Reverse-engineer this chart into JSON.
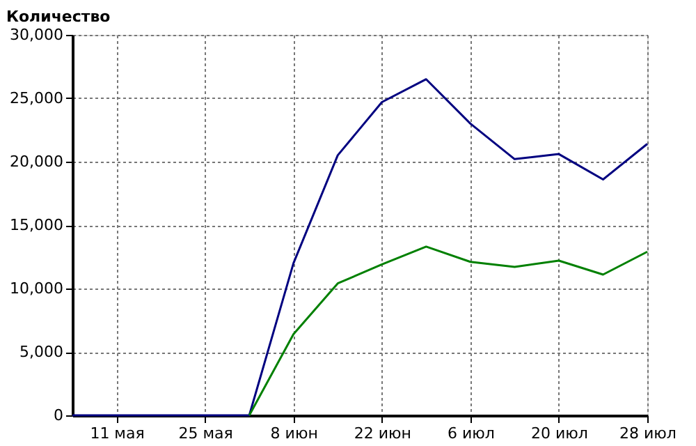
{
  "chart_data": {
    "type": "line",
    "ylabel": "Количество",
    "categories": [
      null,
      "11 мая",
      null,
      "25 мая",
      null,
      "8 июн",
      null,
      "22 июн",
      null,
      "6 июл",
      null,
      "20 июл",
      null,
      "28 июл"
    ],
    "series": [
      {
        "color": "#000080",
        "values": [
          0,
          0,
          0,
          0,
          0,
          12000,
          20500,
          24700,
          26500,
          23000,
          20200,
          20600,
          18600,
          21400
        ]
      },
      {
        "color": "#008000",
        "values": [
          null,
          null,
          null,
          null,
          0,
          6400,
          10400,
          11900,
          13300,
          12100,
          11700,
          12200,
          11100,
          12900
        ]
      }
    ],
    "ylim": [
      0,
      30000
    ],
    "yticks": [
      0,
      {
        "value": 5000,
        "label": "5,000"
      },
      {
        "value": 10000,
        "label": "10,000"
      },
      {
        "value": 15000,
        "label": "15,000"
      },
      {
        "value": 20000,
        "label": "20,000"
      },
      {
        "value": 25000,
        "label": "25,000"
      },
      {
        "value": 30000,
        "label": "30,000"
      }
    ],
    "grid": true,
    "legend": false
  }
}
